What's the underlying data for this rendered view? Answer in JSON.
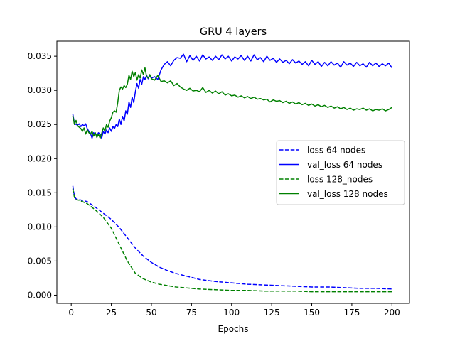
{
  "chart_data": {
    "type": "line",
    "title": "GRU 4 layers",
    "xlabel": "Epochs",
    "ylabel": "",
    "xlim": [
      -8.95,
      210.95
    ],
    "ylim": [
      -0.0012,
      0.0372
    ],
    "xticks": [
      0,
      25,
      50,
      75,
      100,
      125,
      150,
      175,
      200
    ],
    "yticks": [
      0.0,
      0.005,
      0.01,
      0.015,
      0.02,
      0.025,
      0.03,
      0.035
    ],
    "ytick_labels": [
      "0.000",
      "0.005",
      "0.010",
      "0.015",
      "0.020",
      "0.025",
      "0.030",
      "0.035"
    ],
    "legend_position": "center-right",
    "grid": false,
    "series": [
      {
        "name": "loss 64 nodes",
        "color": "#0000ff",
        "style": "dashed",
        "x": [
          1,
          2,
          3,
          5,
          10,
          15,
          20,
          25,
          30,
          35,
          40,
          45,
          50,
          55,
          60,
          65,
          70,
          75,
          80,
          90,
          100,
          110,
          120,
          130,
          140,
          150,
          160,
          170,
          180,
          190,
          200
        ],
        "y": [
          0.016,
          0.0145,
          0.0141,
          0.014,
          0.0137,
          0.0129,
          0.012,
          0.0111,
          0.0099,
          0.0084,
          0.0069,
          0.0057,
          0.0048,
          0.0041,
          0.0036,
          0.0032,
          0.0029,
          0.0026,
          0.0023,
          0.002,
          0.0018,
          0.0016,
          0.0015,
          0.0014,
          0.0013,
          0.0012,
          0.0012,
          0.0011,
          0.001,
          0.001,
          0.0009
        ]
      },
      {
        "name": "val_loss 64 nodes",
        "color": "#0000ff",
        "style": "solid",
        "x": [
          1,
          2,
          3,
          4,
          5,
          6,
          7,
          8,
          9,
          10,
          11,
          12,
          13,
          14,
          15,
          16,
          17,
          18,
          19,
          20,
          21,
          22,
          23,
          24,
          25,
          26,
          27,
          28,
          29,
          30,
          31,
          32,
          33,
          34,
          35,
          36,
          37,
          38,
          39,
          40,
          41,
          42,
          43,
          44,
          45,
          46,
          47,
          48,
          49,
          50,
          52,
          54,
          56,
          58,
          60,
          62,
          64,
          66,
          68,
          70,
          72,
          74,
          76,
          78,
          80,
          82,
          84,
          86,
          88,
          90,
          92,
          94,
          96,
          98,
          100,
          102,
          104,
          106,
          108,
          110,
          112,
          114,
          116,
          118,
          120,
          122,
          124,
          126,
          128,
          130,
          132,
          134,
          136,
          138,
          140,
          142,
          144,
          146,
          148,
          150,
          152,
          154,
          156,
          158,
          160,
          162,
          164,
          166,
          168,
          170,
          172,
          174,
          176,
          178,
          180,
          182,
          184,
          186,
          188,
          190,
          192,
          194,
          196,
          198,
          200
        ],
        "y": [
          0.0265,
          0.0252,
          0.025,
          0.0249,
          0.0251,
          0.0247,
          0.025,
          0.0248,
          0.0251,
          0.0244,
          0.024,
          0.0237,
          0.023,
          0.0238,
          0.0236,
          0.0234,
          0.0238,
          0.0236,
          0.023,
          0.024,
          0.0236,
          0.0242,
          0.0238,
          0.0245,
          0.024,
          0.0247,
          0.0244,
          0.025,
          0.0247,
          0.0258,
          0.025,
          0.0262,
          0.0255,
          0.027,
          0.0265,
          0.0283,
          0.0275,
          0.029,
          0.0282,
          0.0298,
          0.031,
          0.0303,
          0.0316,
          0.0309,
          0.032,
          0.0316,
          0.0322,
          0.0317,
          0.0322,
          0.0318,
          0.032,
          0.0316,
          0.033,
          0.0338,
          0.0342,
          0.0336,
          0.0344,
          0.0348,
          0.0347,
          0.0353,
          0.0342,
          0.0351,
          0.0344,
          0.035,
          0.0343,
          0.0352,
          0.0346,
          0.0349,
          0.0344,
          0.035,
          0.0345,
          0.0352,
          0.0346,
          0.035,
          0.0343,
          0.0349,
          0.0346,
          0.0351,
          0.0344,
          0.035,
          0.0343,
          0.0352,
          0.0345,
          0.0348,
          0.0342,
          0.035,
          0.0344,
          0.0347,
          0.0341,
          0.0346,
          0.0341,
          0.0344,
          0.0339,
          0.0345,
          0.034,
          0.0343,
          0.0338,
          0.0342,
          0.0336,
          0.0344,
          0.0338,
          0.0342,
          0.0335,
          0.0341,
          0.0336,
          0.0342,
          0.0337,
          0.034,
          0.0334,
          0.0342,
          0.0337,
          0.034,
          0.0335,
          0.0341,
          0.0336,
          0.0339,
          0.0334,
          0.0341,
          0.0336,
          0.034,
          0.0335,
          0.0339,
          0.0336,
          0.034,
          0.0333
        ]
      },
      {
        "name": "loss 128_nodes",
        "color": "#008000",
        "style": "dashed",
        "x": [
          1,
          2,
          3,
          5,
          10,
          15,
          20,
          25,
          30,
          35,
          40,
          45,
          50,
          55,
          60,
          65,
          70,
          75,
          80,
          90,
          100,
          110,
          120,
          130,
          140,
          150,
          160,
          170,
          180,
          190,
          200
        ],
        "y": [
          0.0156,
          0.0143,
          0.014,
          0.0139,
          0.0134,
          0.0125,
          0.0114,
          0.0098,
          0.0074,
          0.005,
          0.0032,
          0.0024,
          0.0019,
          0.0016,
          0.0014,
          0.0012,
          0.0011,
          0.001,
          0.0009,
          0.0008,
          0.0007,
          0.0007,
          0.0006,
          0.0006,
          0.0006,
          0.0005,
          0.0005,
          0.0005,
          0.0005,
          0.0005,
          0.0005
        ]
      },
      {
        "name": "val_loss 128 nodes",
        "color": "#008000",
        "style": "solid",
        "x": [
          1,
          2,
          3,
          4,
          5,
          6,
          7,
          8,
          9,
          10,
          11,
          12,
          13,
          14,
          15,
          16,
          17,
          18,
          19,
          20,
          21,
          22,
          23,
          24,
          25,
          26,
          27,
          28,
          29,
          30,
          31,
          32,
          33,
          34,
          35,
          36,
          37,
          38,
          39,
          40,
          41,
          42,
          43,
          44,
          45,
          46,
          47,
          48,
          49,
          50,
          52,
          54,
          56,
          58,
          60,
          62,
          64,
          66,
          68,
          70,
          72,
          74,
          76,
          78,
          80,
          82,
          84,
          86,
          88,
          90,
          92,
          94,
          96,
          98,
          100,
          102,
          104,
          106,
          108,
          110,
          112,
          114,
          116,
          118,
          120,
          122,
          124,
          126,
          128,
          130,
          132,
          134,
          136,
          138,
          140,
          142,
          144,
          146,
          148,
          150,
          152,
          154,
          156,
          158,
          160,
          162,
          164,
          166,
          168,
          170,
          172,
          174,
          176,
          178,
          180,
          182,
          184,
          186,
          188,
          190,
          192,
          194,
          196,
          198,
          200
        ],
        "y": [
          0.0263,
          0.025,
          0.0256,
          0.0248,
          0.0246,
          0.0244,
          0.024,
          0.0245,
          0.0236,
          0.0242,
          0.0238,
          0.0236,
          0.024,
          0.0233,
          0.0238,
          0.0231,
          0.0236,
          0.023,
          0.0237,
          0.0245,
          0.024,
          0.025,
          0.0246,
          0.0255,
          0.026,
          0.0268,
          0.027,
          0.0268,
          0.0282,
          0.03,
          0.0305,
          0.0302,
          0.0307,
          0.0304,
          0.0309,
          0.0322,
          0.0316,
          0.0328,
          0.032,
          0.0326,
          0.0315,
          0.0323,
          0.0318,
          0.033,
          0.0323,
          0.0333,
          0.032,
          0.0318,
          0.0323,
          0.0317,
          0.0315,
          0.0322,
          0.0313,
          0.0314,
          0.0311,
          0.0314,
          0.0307,
          0.031,
          0.0305,
          0.0302,
          0.03,
          0.0303,
          0.0299,
          0.03,
          0.0298,
          0.0304,
          0.0297,
          0.03,
          0.0296,
          0.0299,
          0.0295,
          0.0298,
          0.0293,
          0.0295,
          0.0292,
          0.0293,
          0.029,
          0.0292,
          0.0289,
          0.0291,
          0.0288,
          0.029,
          0.0287,
          0.0288,
          0.0286,
          0.0287,
          0.0283,
          0.0286,
          0.0284,
          0.0285,
          0.0282,
          0.0284,
          0.0281,
          0.0283,
          0.028,
          0.0282,
          0.0279,
          0.0281,
          0.0278,
          0.028,
          0.0277,
          0.0279,
          0.0276,
          0.0278,
          0.0275,
          0.0277,
          0.0274,
          0.0276,
          0.0273,
          0.0275,
          0.0272,
          0.0274,
          0.0271,
          0.0273,
          0.0272,
          0.0274,
          0.0271,
          0.0273,
          0.027,
          0.0272,
          0.0271,
          0.0273,
          0.027,
          0.0272,
          0.0275
        ]
      }
    ]
  }
}
